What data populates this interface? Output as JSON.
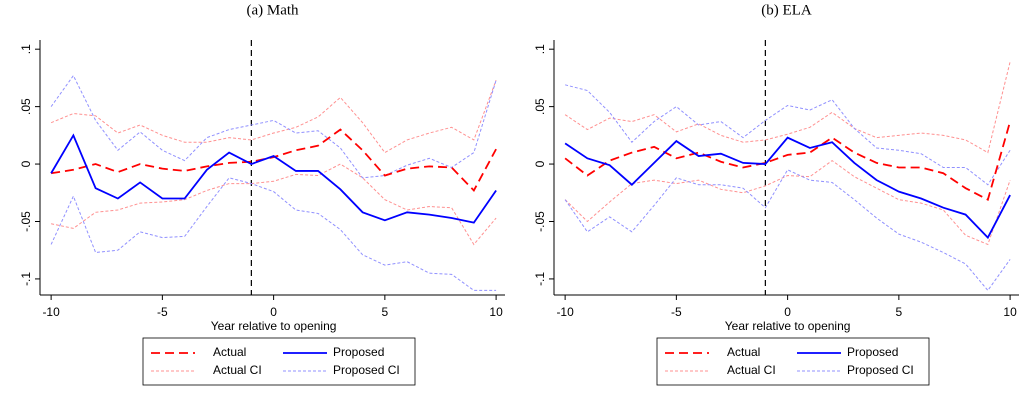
{
  "chart_data": [
    {
      "type": "line",
      "title": "(a) Math",
      "xlabel": "Year relative to opening",
      "x": [
        -10,
        -9,
        -8,
        -7,
        -6,
        -5,
        -4,
        -3,
        -2,
        -1,
        0,
        1,
        2,
        3,
        4,
        5,
        6,
        7,
        8,
        9,
        10
      ],
      "xlim": [
        -10.5,
        10.4
      ],
      "xticks": [
        -10,
        -5,
        0,
        5,
        10
      ],
      "ylim": [
        -0.114,
        0.108
      ],
      "yticks": [
        {
          "value": -0.1,
          "label": "-.1"
        },
        {
          "value": -0.05,
          "label": "-.05"
        },
        0,
        {
          "value": 0.05,
          "label": ".05"
        },
        {
          "value": 0.1,
          "label": ".1"
        }
      ],
      "vline": -1,
      "series": [
        {
          "name": "Actual",
          "color": "#ff0000",
          "dash": "dashed",
          "values": [
            -0.008,
            -0.005,
            0,
            -0.007,
            0,
            -0.004,
            -0.006,
            -0.002,
            0.001,
            0.002,
            0.006,
            0.012,
            0.016,
            0.03,
            0.012,
            -0.01,
            -0.004,
            -0.002,
            -0.003,
            -0.023,
            0.013
          ]
        },
        {
          "name": "Proposed",
          "color": "#0000ff",
          "dash": "solid",
          "values": [
            -0.008,
            0.025,
            -0.021,
            -0.03,
            -0.016,
            -0.03,
            -0.03,
            -0.005,
            0.01,
            0,
            0.007,
            -0.006,
            -0.006,
            -0.022,
            -0.042,
            -0.049,
            -0.042,
            -0.044,
            -0.047,
            -0.051,
            -0.023
          ]
        },
        {
          "name": "Actual CI",
          "color": "#ff9090",
          "dash": "dotted",
          "upper": [
            0.036,
            0.044,
            0.042,
            0.027,
            0.034,
            0.025,
            0.019,
            0.019,
            0.023,
            0.021,
            0.027,
            0.032,
            0.041,
            0.058,
            0.036,
            0.01,
            0.021,
            0.027,
            0.032,
            0.021,
            0.073
          ],
          "lower": [
            -0.052,
            -0.056,
            -0.042,
            -0.04,
            -0.034,
            -0.033,
            -0.031,
            -0.023,
            -0.017,
            -0.017,
            -0.015,
            -0.009,
            -0.01,
            0,
            -0.012,
            -0.031,
            -0.04,
            -0.037,
            -0.038,
            -0.07,
            -0.047
          ]
        },
        {
          "name": "Proposed CI",
          "color": "#9090ff",
          "dash": "dotted",
          "upper": [
            0.05,
            0.077,
            0.038,
            0.012,
            0.028,
            0.012,
            0.003,
            0.023,
            0.03,
            0.034,
            0.038,
            0.027,
            0.029,
            0.014,
            -0.012,
            -0.01,
            -0.001,
            0.005,
            -0.003,
            0.01,
            0.073
          ],
          "lower": [
            -0.07,
            -0.028,
            -0.077,
            -0.075,
            -0.059,
            -0.064,
            -0.063,
            -0.037,
            -0.012,
            -0.017,
            -0.024,
            -0.04,
            -0.043,
            -0.057,
            -0.079,
            -0.088,
            -0.085,
            -0.095,
            -0.096,
            -0.11,
            -0.11
          ]
        }
      ]
    },
    {
      "type": "line",
      "title": "(b) ELA",
      "xlabel": "Year relative to opening",
      "x": [
        -10,
        -9,
        -8,
        -7,
        -6,
        -5,
        -4,
        -3,
        -2,
        -1,
        0,
        1,
        2,
        3,
        4,
        5,
        6,
        7,
        8,
        9,
        10
      ],
      "xlim": [
        -10.5,
        10.4
      ],
      "xticks": [
        -10,
        -5,
        0,
        5,
        10
      ],
      "ylim": [
        -0.114,
        0.108
      ],
      "yticks": [
        {
          "value": -0.1,
          "label": "-.1"
        },
        {
          "value": -0.05,
          "label": "-.05"
        },
        0,
        {
          "value": 0.05,
          "label": ".05"
        },
        {
          "value": 0.1,
          "label": ".1"
        }
      ],
      "vline": -1,
      "series": [
        {
          "name": "Actual",
          "color": "#ff0000",
          "dash": "dashed",
          "values": [
            0.005,
            -0.01,
            0.003,
            0.01,
            0.015,
            0.005,
            0.01,
            0.002,
            -0.003,
            0.001,
            0.008,
            0.01,
            0.023,
            0.01,
            0.001,
            -0.003,
            -0.003,
            -0.008,
            -0.021,
            -0.031,
            0.037
          ]
        },
        {
          "name": "Proposed",
          "color": "#0000ff",
          "dash": "solid",
          "values": [
            0.018,
            0.005,
            -0.001,
            -0.018,
            0.001,
            0.02,
            0.007,
            0.009,
            0.001,
            0,
            0.023,
            0.014,
            0.019,
            0.001,
            -0.014,
            -0.024,
            -0.03,
            -0.038,
            -0.044,
            -0.064,
            -0.027
          ]
        },
        {
          "name": "Actual CI",
          "color": "#ff9090",
          "dash": "dotted",
          "upper": [
            0.043,
            0.03,
            0.04,
            0.037,
            0.043,
            0.028,
            0.035,
            0.025,
            0.019,
            0.021,
            0.026,
            0.032,
            0.045,
            0.031,
            0.023,
            0.025,
            0.027,
            0.025,
            0.021,
            0.01,
            0.089
          ],
          "lower": [
            -0.031,
            -0.05,
            -0.033,
            -0.017,
            -0.014,
            -0.017,
            -0.014,
            -0.022,
            -0.025,
            -0.019,
            -0.01,
            -0.011,
            0.003,
            -0.011,
            -0.021,
            -0.031,
            -0.034,
            -0.04,
            -0.062,
            -0.07,
            -0.014
          ]
        },
        {
          "name": "Proposed CI",
          "color": "#9090ff",
          "dash": "dotted",
          "upper": [
            0.069,
            0.064,
            0.045,
            0.019,
            0.037,
            0.05,
            0.034,
            0.037,
            0.023,
            0.038,
            0.051,
            0.047,
            0.056,
            0.031,
            0.014,
            0.012,
            0.009,
            -0.003,
            -0.003,
            -0.018,
            0.012
          ],
          "lower": [
            -0.031,
            -0.059,
            -0.046,
            -0.059,
            -0.036,
            -0.012,
            -0.018,
            -0.018,
            -0.021,
            -0.038,
            -0.005,
            -0.014,
            -0.016,
            -0.031,
            -0.047,
            -0.061,
            -0.068,
            -0.077,
            -0.087,
            -0.11,
            -0.083
          ]
        }
      ]
    }
  ]
}
